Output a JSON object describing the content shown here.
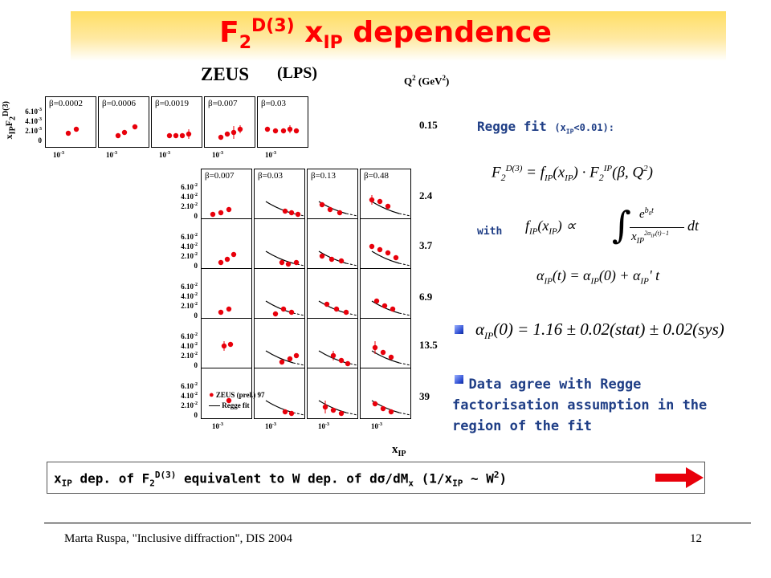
{
  "slide": {
    "title_main": "F",
    "title_sub": "2",
    "title_sup": "D(3)",
    "title_x": " x",
    "title_xsub": "IP",
    "title_rest": " dependence"
  },
  "figure": {
    "experiment": "ZEUS",
    "method": "(LPS)",
    "q2_header": "Q",
    "q2_header_sup": "2",
    "q2_header_unit": " (GeV",
    "q2_header_unit_sup": "2",
    "q2_header_close": ")",
    "y_axis_label": "x",
    "y_axis_label_sub": "IP",
    "y_axis_label_f": "F",
    "y_axis_label_f_sub": "2",
    "y_axis_label_f_sup": "D(3)",
    "x_axis_label": "x",
    "x_axis_label_sub": "IP",
    "legend_data": "ZEUS (prel.) 97",
    "legend_fit": "Regge fit",
    "x_tick": "10",
    "x_tick_sup": "-3",
    "q2_values": [
      "0.15",
      "2.4",
      "3.7",
      "6.9",
      "13.5",
      "39"
    ],
    "top_row_betas": [
      "β=0.0002",
      "β=0.0006",
      "β=0.0019",
      "β=0.007",
      "β=0.03"
    ],
    "grid_betas": [
      "β=0.007",
      "β=0.03",
      "β=0.13",
      "β=0.48"
    ],
    "top_yticks": [
      "6.10",
      "4.10",
      "2.10",
      "0"
    ],
    "grid_yticks": [
      "6.10",
      "4.10",
      "2.10",
      "0"
    ],
    "ytick_exp": "-3",
    "grid_ytick_exp": "-2"
  },
  "right_panel": {
    "regge_fit_label": "Regge fit ",
    "regge_fit_cond": "(x",
    "regge_fit_cond_sub": "IP",
    "regge_fit_cond_rest": "<0.01):",
    "with_label": "with",
    "formula_1": "F₂^D(3) = f_IP(x_IP) · F₂^IP(β, Q²)",
    "formula_2": "f_IP(x_IP) ∝ ∫ e^{b₀t} / x_IP^{2α_IP(t)−1} dt",
    "formula_3": "α_IP(t) = α_IP(0) + α_IP' t",
    "alpha_result": "α_IP(0) = 1.16 ± 0.02(stat) ± 0.02(sys)",
    "agree_text": "Data agree with Regge factorisation assumption in the region of the fit"
  },
  "banner": {
    "text": "x_IP dep. of F₂^D(3) equivalent to W dep. of dσ/dMₓ (1/x_IP ~ W²)"
  },
  "footer": {
    "left": "Marta Ruspa, \"Inclusive diffraction\", DIS 2004",
    "page": "12"
  },
  "colors": {
    "title": "#ff0000",
    "accent_text": "#1f3e86",
    "points": "#e8000b",
    "arrow": "#e8000b"
  }
}
